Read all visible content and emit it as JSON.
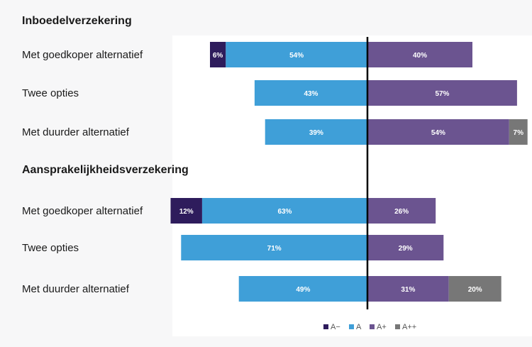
{
  "colors": {
    "A-": "#2e1c5c",
    "A": "#3f9fd8",
    "A+": "#6b5490",
    "A++": "#777777",
    "zero_line": "#000000"
  },
  "chart_data": {
    "type": "bar",
    "orientation": "horizontal",
    "stacked": "diverging",
    "x_unit": "%",
    "groups": [
      {
        "title": "Inboedelverzekering",
        "rows": [
          {
            "label": "Met goedkoper alternatief",
            "A-": 6,
            "A": 54,
            "A+": 40,
            "A++": 0
          },
          {
            "label": "Twee opties",
            "A-": 0,
            "A": 43,
            "A+": 57,
            "A++": 0
          },
          {
            "label": "Met duurder alternatief",
            "A-": 0,
            "A": 39,
            "A+": 54,
            "A++": 7
          }
        ]
      },
      {
        "title": "Aansprakelijkheidsverzekering",
        "rows": [
          {
            "label": "Met goedkoper alternatief",
            "A-": 12,
            "A": 63,
            "A+": 26,
            "A++": 0
          },
          {
            "label": "Twee opties",
            "A-": 0,
            "A": 71,
            "A+": 29,
            "A++": 0
          },
          {
            "label": "Met duurder alternatief",
            "A-": 0,
            "A": 49,
            "A+": 31,
            "A++": 20
          }
        ]
      }
    ],
    "series": [
      {
        "name": "A−",
        "key": "A-",
        "side": "left"
      },
      {
        "name": "A",
        "key": "A",
        "side": "left"
      },
      {
        "name": "A+",
        "key": "A+",
        "side": "right"
      },
      {
        "name": "A++",
        "key": "A++",
        "side": "right"
      }
    ],
    "legend_position": "bottom-center",
    "grid": false
  }
}
